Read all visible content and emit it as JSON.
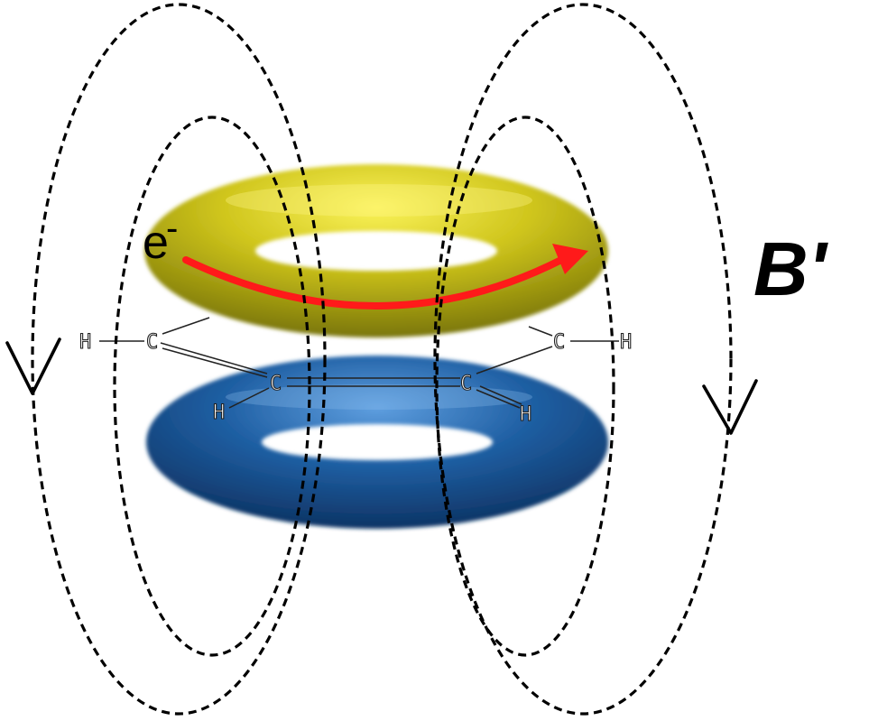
{
  "labels": {
    "electron": "e",
    "electron_charge": "-",
    "field": "B'"
  },
  "atoms": {
    "h_left": "H",
    "c_left": "C",
    "c_mid_left": "C",
    "h_lower_left": "H",
    "c_mid_right": "C",
    "h_lower_right": "H",
    "c_right": "C",
    "h_right": "H"
  },
  "colors": {
    "upper_ring": "#c9c21a",
    "lower_ring": "#1f5fa3",
    "current_arrow": "#ff1a1a",
    "field_lines": "#000000"
  }
}
